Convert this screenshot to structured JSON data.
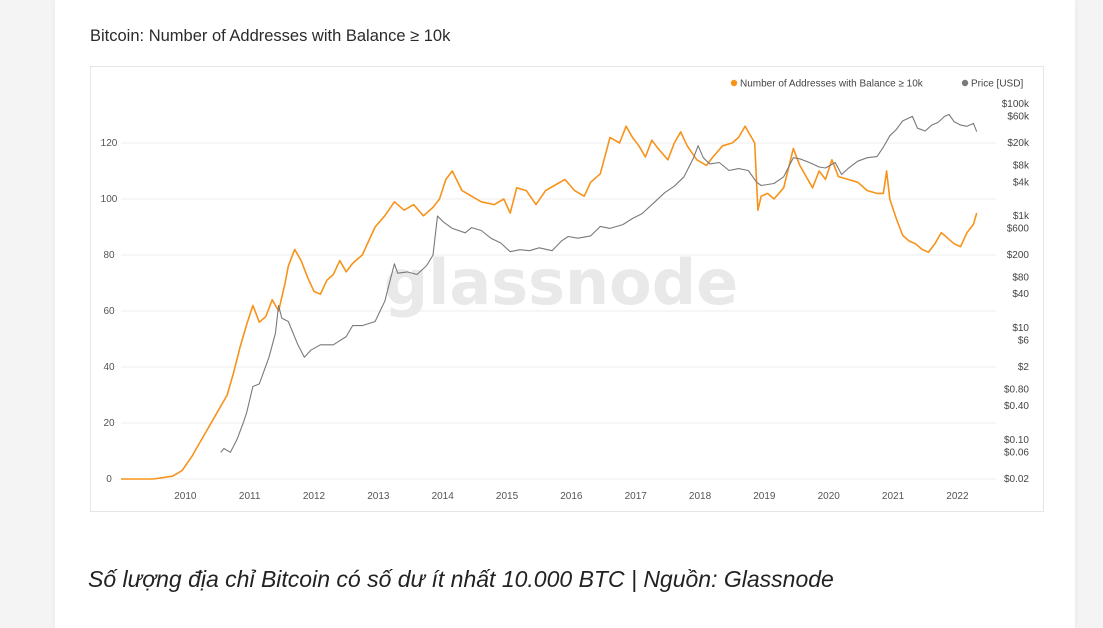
{
  "page": {
    "title": "Bitcoin: Number of Addresses with Balance ≥ 10k",
    "caption": "Số lượng địa chỉ Bitcoin có số dư ít nhất 10.000 BTC | Nguồn: Glassnode",
    "watermark": "glassnode"
  },
  "colors": {
    "addresses": "#f7931a",
    "price": "#7a7a7a",
    "grid": "#eeeeee",
    "text": "#555555"
  },
  "chart_data": {
    "type": "line",
    "title": "Bitcoin: Number of Addresses with Balance ≥ 10k",
    "legend": {
      "placement": "top-right",
      "entries": [
        "Number of Addresses with Balance ≥ 10k",
        "Price [USD]"
      ]
    },
    "grid": true,
    "xlim": [
      2009.0,
      2022.6
    ],
    "x_ticks": [
      {
        "v": 2010,
        "label": "2010"
      },
      {
        "v": 2011,
        "label": "2011"
      },
      {
        "v": 2012,
        "label": "2012"
      },
      {
        "v": 2013,
        "label": "2013"
      },
      {
        "v": 2014,
        "label": "2014"
      },
      {
        "v": 2015,
        "label": "2015"
      },
      {
        "v": 2016,
        "label": "2016"
      },
      {
        "v": 2017,
        "label": "2017"
      },
      {
        "v": 2018,
        "label": "2018"
      },
      {
        "v": 2019,
        "label": "2019"
      },
      {
        "v": 2020,
        "label": "2020"
      },
      {
        "v": 2021,
        "label": "2021"
      },
      {
        "v": 2022,
        "label": "2022"
      }
    ],
    "y_left": {
      "ylim": [
        0,
        130
      ],
      "ticks": [
        {
          "v": 0,
          "label": "0"
        },
        {
          "v": 20,
          "label": "20"
        },
        {
          "v": 40,
          "label": "40"
        },
        {
          "v": 60,
          "label": "60"
        },
        {
          "v": 80,
          "label": "80"
        },
        {
          "v": 100,
          "label": "100"
        },
        {
          "v": 120,
          "label": "120"
        }
      ]
    },
    "y_right": {
      "scale": "log",
      "ylim": [
        0.02,
        100000
      ],
      "ticks": [
        {
          "v": 0.02,
          "label": "$0.02"
        },
        {
          "v": 0.06,
          "label": "$0.06"
        },
        {
          "v": 0.1,
          "label": "$0.10"
        },
        {
          "v": 0.4,
          "label": "$0.40"
        },
        {
          "v": 0.8,
          "label": "$0.80"
        },
        {
          "v": 2,
          "label": "$2"
        },
        {
          "v": 6,
          "label": "$6"
        },
        {
          "v": 10,
          "label": "$10"
        },
        {
          "v": 40,
          "label": "$40"
        },
        {
          "v": 80,
          "label": "$80"
        },
        {
          "v": 200,
          "label": "$200"
        },
        {
          "v": 600,
          "label": "$600"
        },
        {
          "v": 1000,
          "label": "$1k"
        },
        {
          "v": 4000,
          "label": "$4k"
        },
        {
          "v": 8000,
          "label": "$8k"
        },
        {
          "v": 20000,
          "label": "$20k"
        },
        {
          "v": 60000,
          "label": "$60k"
        },
        {
          "v": 100000,
          "label": "$100k"
        }
      ]
    },
    "series": [
      {
        "name": "Number of Addresses with Balance ≥ 10k",
        "axis": "left",
        "points": [
          [
            2009.0,
            0
          ],
          [
            2009.5,
            0
          ],
          [
            2009.8,
            1
          ],
          [
            2009.95,
            3
          ],
          [
            2010.1,
            8
          ],
          [
            2010.2,
            12
          ],
          [
            2010.35,
            18
          ],
          [
            2010.5,
            24
          ],
          [
            2010.65,
            30
          ],
          [
            2010.75,
            38
          ],
          [
            2010.85,
            47
          ],
          [
            2010.95,
            55
          ],
          [
            2011.05,
            62
          ],
          [
            2011.15,
            56
          ],
          [
            2011.25,
            58
          ],
          [
            2011.35,
            64
          ],
          [
            2011.45,
            60
          ],
          [
            2011.55,
            70
          ],
          [
            2011.6,
            76
          ],
          [
            2011.7,
            82
          ],
          [
            2011.8,
            78
          ],
          [
            2011.9,
            72
          ],
          [
            2012.0,
            67
          ],
          [
            2012.1,
            66
          ],
          [
            2012.2,
            71
          ],
          [
            2012.3,
            73
          ],
          [
            2012.4,
            78
          ],
          [
            2012.5,
            74
          ],
          [
            2012.6,
            77
          ],
          [
            2012.75,
            80
          ],
          [
            2012.85,
            85
          ],
          [
            2012.95,
            90
          ],
          [
            2013.1,
            94
          ],
          [
            2013.25,
            99
          ],
          [
            2013.4,
            96
          ],
          [
            2013.55,
            98
          ],
          [
            2013.7,
            94
          ],
          [
            2013.85,
            97
          ],
          [
            2013.95,
            100
          ],
          [
            2014.05,
            107
          ],
          [
            2014.15,
            110
          ],
          [
            2014.3,
            103
          ],
          [
            2014.45,
            101
          ],
          [
            2014.6,
            99
          ],
          [
            2014.8,
            98
          ],
          [
            2014.95,
            100
          ],
          [
            2015.05,
            95
          ],
          [
            2015.15,
            104
          ],
          [
            2015.3,
            103
          ],
          [
            2015.45,
            98
          ],
          [
            2015.6,
            103
          ],
          [
            2015.75,
            105
          ],
          [
            2015.9,
            107
          ],
          [
            2016.05,
            103
          ],
          [
            2016.2,
            101
          ],
          [
            2016.3,
            106
          ],
          [
            2016.45,
            109
          ],
          [
            2016.6,
            122
          ],
          [
            2016.75,
            120
          ],
          [
            2016.85,
            126
          ],
          [
            2016.95,
            122
          ],
          [
            2017.05,
            119
          ],
          [
            2017.15,
            115
          ],
          [
            2017.25,
            121
          ],
          [
            2017.35,
            118
          ],
          [
            2017.5,
            114
          ],
          [
            2017.6,
            120
          ],
          [
            2017.7,
            124
          ],
          [
            2017.8,
            119
          ],
          [
            2017.95,
            114
          ],
          [
            2018.1,
            112
          ],
          [
            2018.2,
            115
          ],
          [
            2018.35,
            119
          ],
          [
            2018.5,
            120
          ],
          [
            2018.6,
            122
          ],
          [
            2018.7,
            126
          ],
          [
            2018.8,
            122
          ],
          [
            2018.85,
            120
          ],
          [
            2018.9,
            96
          ],
          [
            2018.95,
            101
          ],
          [
            2019.05,
            102
          ],
          [
            2019.15,
            100
          ],
          [
            2019.3,
            104
          ],
          [
            2019.45,
            118
          ],
          [
            2019.55,
            112
          ],
          [
            2019.65,
            108
          ],
          [
            2019.75,
            104
          ],
          [
            2019.85,
            110
          ],
          [
            2019.95,
            107
          ],
          [
            2020.05,
            114
          ],
          [
            2020.15,
            108
          ],
          [
            2020.3,
            107
          ],
          [
            2020.45,
            106
          ],
          [
            2020.6,
            103
          ],
          [
            2020.75,
            102
          ],
          [
            2020.85,
            102
          ],
          [
            2020.9,
            110
          ],
          [
            2020.95,
            100
          ],
          [
            2021.05,
            93
          ],
          [
            2021.15,
            87
          ],
          [
            2021.25,
            85
          ],
          [
            2021.35,
            84
          ],
          [
            2021.45,
            82
          ],
          [
            2021.55,
            81
          ],
          [
            2021.65,
            84
          ],
          [
            2021.75,
            88
          ],
          [
            2021.85,
            86
          ],
          [
            2021.95,
            84
          ],
          [
            2022.05,
            83
          ],
          [
            2022.15,
            88
          ],
          [
            2022.25,
            91
          ],
          [
            2022.3,
            95
          ]
        ]
      },
      {
        "name": "Price [USD]",
        "axis": "right",
        "points": [
          [
            2010.55,
            0.06
          ],
          [
            2010.6,
            0.07
          ],
          [
            2010.7,
            0.06
          ],
          [
            2010.8,
            0.1
          ],
          [
            2010.9,
            0.2
          ],
          [
            2010.95,
            0.3
          ],
          [
            2011.05,
            0.9
          ],
          [
            2011.15,
            1.0
          ],
          [
            2011.3,
            3
          ],
          [
            2011.4,
            8
          ],
          [
            2011.45,
            25
          ],
          [
            2011.5,
            15
          ],
          [
            2011.6,
            13
          ],
          [
            2011.75,
            5
          ],
          [
            2011.85,
            3
          ],
          [
            2011.95,
            4
          ],
          [
            2012.1,
            5
          ],
          [
            2012.3,
            5
          ],
          [
            2012.5,
            7
          ],
          [
            2012.6,
            11
          ],
          [
            2012.75,
            11
          ],
          [
            2012.95,
            13
          ],
          [
            2013.1,
            30
          ],
          [
            2013.25,
            140
          ],
          [
            2013.3,
            95
          ],
          [
            2013.45,
            100
          ],
          [
            2013.6,
            90
          ],
          [
            2013.75,
            130
          ],
          [
            2013.85,
            200
          ],
          [
            2013.92,
            1000
          ],
          [
            2014.0,
            800
          ],
          [
            2014.15,
            600
          ],
          [
            2014.35,
            500
          ],
          [
            2014.45,
            620
          ],
          [
            2014.6,
            550
          ],
          [
            2014.75,
            400
          ],
          [
            2014.9,
            330
          ],
          [
            2015.05,
            230
          ],
          [
            2015.2,
            250
          ],
          [
            2015.35,
            240
          ],
          [
            2015.5,
            270
          ],
          [
            2015.7,
            240
          ],
          [
            2015.85,
            360
          ],
          [
            2015.95,
            430
          ],
          [
            2016.1,
            400
          ],
          [
            2016.3,
            440
          ],
          [
            2016.45,
            650
          ],
          [
            2016.6,
            600
          ],
          [
            2016.8,
            700
          ],
          [
            2016.95,
            900
          ],
          [
            2017.1,
            1100
          ],
          [
            2017.3,
            1800
          ],
          [
            2017.45,
            2600
          ],
          [
            2017.6,
            3400
          ],
          [
            2017.75,
            5000
          ],
          [
            2017.9,
            11000
          ],
          [
            2017.97,
            18000
          ],
          [
            2018.05,
            11000
          ],
          [
            2018.15,
            8500
          ],
          [
            2018.3,
            9000
          ],
          [
            2018.45,
            6500
          ],
          [
            2018.6,
            7000
          ],
          [
            2018.75,
            6500
          ],
          [
            2018.88,
            4000
          ],
          [
            2018.95,
            3500
          ],
          [
            2019.15,
            3800
          ],
          [
            2019.3,
            5000
          ],
          [
            2019.45,
            11000
          ],
          [
            2019.55,
            10500
          ],
          [
            2019.7,
            9000
          ],
          [
            2019.85,
            7500
          ],
          [
            2019.95,
            7200
          ],
          [
            2020.1,
            9000
          ],
          [
            2020.2,
            5500
          ],
          [
            2020.3,
            7000
          ],
          [
            2020.45,
            9500
          ],
          [
            2020.6,
            11000
          ],
          [
            2020.75,
            11500
          ],
          [
            2020.85,
            17000
          ],
          [
            2020.95,
            27000
          ],
          [
            2021.05,
            35000
          ],
          [
            2021.15,
            50000
          ],
          [
            2021.3,
            60000
          ],
          [
            2021.38,
            37000
          ],
          [
            2021.5,
            33000
          ],
          [
            2021.6,
            42000
          ],
          [
            2021.7,
            47000
          ],
          [
            2021.8,
            60000
          ],
          [
            2021.87,
            65000
          ],
          [
            2021.95,
            48000
          ],
          [
            2022.05,
            42000
          ],
          [
            2022.15,
            40000
          ],
          [
            2022.25,
            45000
          ],
          [
            2022.3,
            32000
          ]
        ]
      }
    ]
  }
}
